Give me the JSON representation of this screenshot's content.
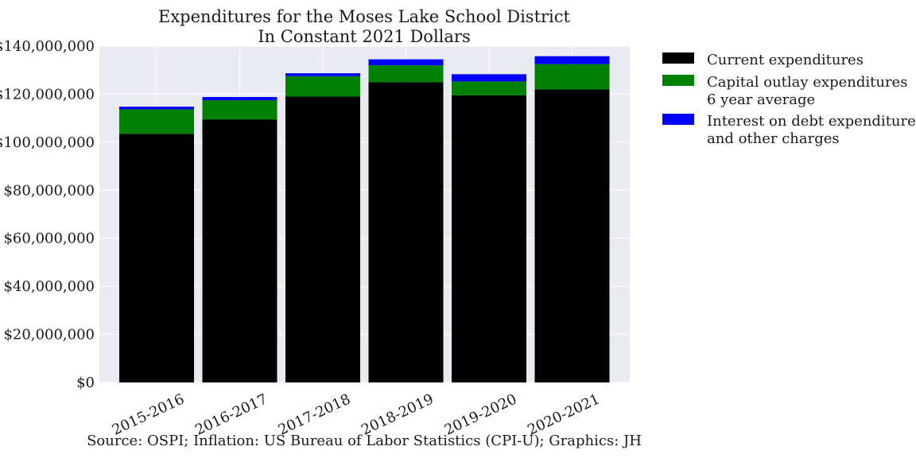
{
  "chart_data": {
    "type": "bar",
    "stacked": true,
    "title": [
      "Expenditures for the Moses Lake School District",
      "In Constant 2021 Dollars"
    ],
    "categories": [
      "2015-2016",
      "2016-2017",
      "2017-2018",
      "2018-2019",
      "2019-2020",
      "2020-2021"
    ],
    "series": [
      {
        "name": "Current expenditures",
        "color": "#000000",
        "values": [
          103500000,
          109500000,
          119000000,
          125000000,
          119500000,
          122000000
        ]
      },
      {
        "name": [
          "Capital outlay expenditures",
          "6 year average"
        ],
        "color": "#008000",
        "values": [
          10200000,
          8000000,
          8500000,
          7000000,
          5800000,
          10500000
        ]
      },
      {
        "name": [
          "Interest on debt expenditures",
          "and other charges"
        ],
        "color": "#0000ff",
        "values": [
          1100000,
          1300000,
          1200000,
          2500000,
          3000000,
          3300000
        ]
      }
    ],
    "ylim": [
      0,
      140000000
    ],
    "yticks": [
      "$0",
      "$20,000,000",
      "$40,000,000",
      "$60,000,000",
      "$80,000,000",
      "$100,000,000",
      "$120,000,000",
      "$140,000,000"
    ],
    "ytick_values": [
      0,
      20000000,
      40000000,
      60000000,
      80000000,
      100000000,
      120000000,
      140000000
    ],
    "xlabel": "",
    "ylabel": "",
    "grid": true,
    "legend_position": "outside-right-top",
    "plot_background": "#eaeaf2",
    "source": "Source: OSPI; Inflation: US Bureau of Labor Statistics (CPI-U); Graphics: JH"
  }
}
